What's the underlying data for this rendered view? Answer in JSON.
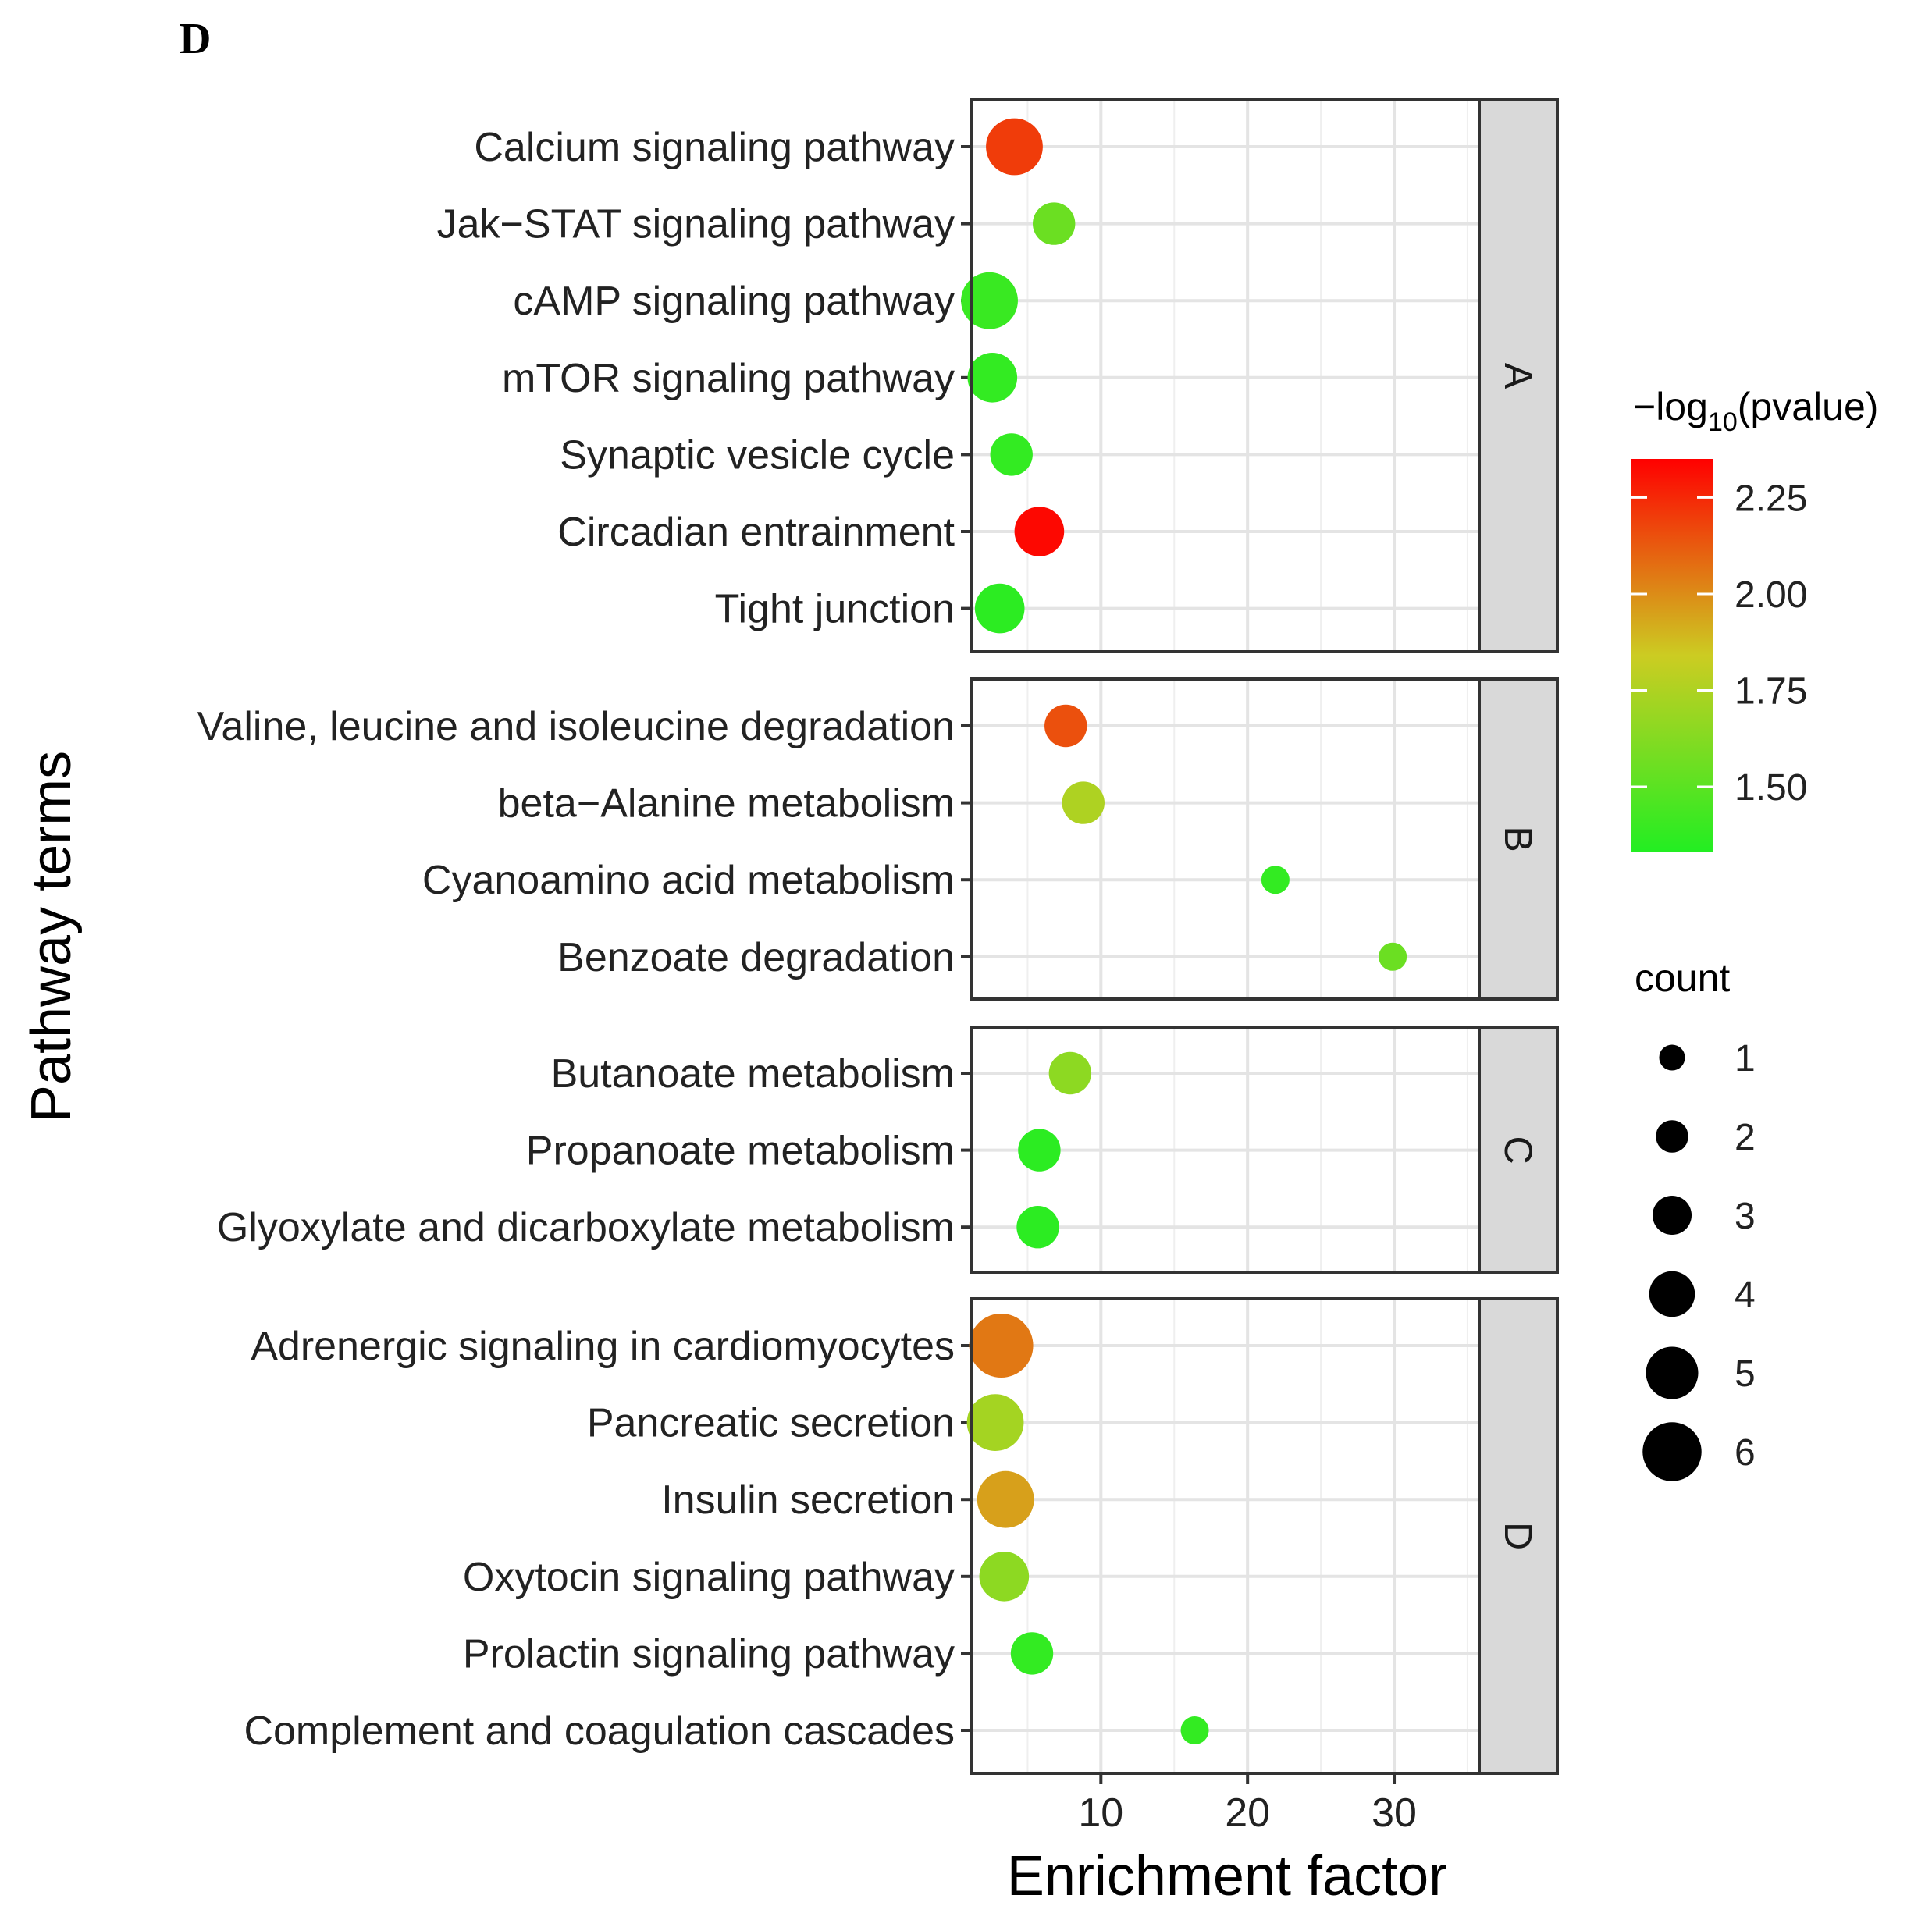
{
  "panel_letter": "D",
  "chart_data": {
    "type": "scatter",
    "title": "",
    "xlabel": "Enrichment factor",
    "ylabel": "Pathway terms",
    "xlim": [
      1.2,
      35.8
    ],
    "x_ticks": [
      10,
      20,
      30
    ],
    "grid": true,
    "facets": [
      {
        "label": "A",
        "points": [
          {
            "term": "Calcium signaling pathway",
            "x": 4.1,
            "count": 5,
            "neglog10p": 2.2
          },
          {
            "term": "Jak−STAT signaling pathway",
            "x": 6.8,
            "count": 3,
            "neglog10p": 1.55
          },
          {
            "term": "cAMP signaling pathway",
            "x": 2.4,
            "count": 5,
            "neglog10p": 1.4
          },
          {
            "term": "mTOR signaling pathway",
            "x": 2.6,
            "count": 4,
            "neglog10p": 1.38
          },
          {
            "term": "Synaptic vesicle cycle",
            "x": 3.9,
            "count": 3,
            "neglog10p": 1.38
          },
          {
            "term": "Circadian entrainment",
            "x": 5.8,
            "count": 4,
            "neglog10p": 2.33
          },
          {
            "term": "Tight junction",
            "x": 3.1,
            "count": 4,
            "neglog10p": 1.36
          }
        ]
      },
      {
        "label": "B",
        "points": [
          {
            "term": "Valine, leucine and isoleucine degradation",
            "x": 7.6,
            "count": 3,
            "neglog10p": 2.15
          },
          {
            "term": "beta−Alanine metabolism",
            "x": 8.8,
            "count": 3,
            "neglog10p": 1.75
          },
          {
            "term": "Cyanoamino acid metabolism",
            "x": 21.9,
            "count": 1,
            "neglog10p": 1.38
          },
          {
            "term": "Benzoate degradation",
            "x": 29.9,
            "count": 1,
            "neglog10p": 1.55
          }
        ]
      },
      {
        "label": "C",
        "points": [
          {
            "term": "Butanoate metabolism",
            "x": 7.9,
            "count": 3,
            "neglog10p": 1.65
          },
          {
            "term": "Propanoate metabolism",
            "x": 5.8,
            "count": 3,
            "neglog10p": 1.36
          },
          {
            "term": "Glyoxylate and dicarboxylate metabolism",
            "x": 5.7,
            "count": 3,
            "neglog10p": 1.36
          }
        ]
      },
      {
        "label": "D",
        "points": [
          {
            "term": "Adrenergic signaling in cardiomyocytes",
            "x": 3.2,
            "count": 6,
            "neglog10p": 2.05
          },
          {
            "term": "Pancreatic secretion",
            "x": 2.8,
            "count": 5,
            "neglog10p": 1.72
          },
          {
            "term": "Insulin secretion",
            "x": 3.5,
            "count": 5,
            "neglog10p": 1.95
          },
          {
            "term": "Oxytocin signaling pathway",
            "x": 3.4,
            "count": 4,
            "neglog10p": 1.65
          },
          {
            "term": "Prolactin signaling pathway",
            "x": 5.3,
            "count": 3,
            "neglog10p": 1.38
          },
          {
            "term": "Complement and coagulation cascades",
            "x": 16.4,
            "count": 1,
            "neglog10p": 1.38
          }
        ]
      }
    ],
    "color_legend": {
      "title_prefix": "−log",
      "title_sub": "10",
      "title_suffix": "(pvalue)",
      "min": 1.33,
      "max": 2.35,
      "ticks": [
        2.25,
        2.0,
        1.75,
        1.5
      ],
      "tick_labels": [
        "2.25",
        "2.00",
        "1.75",
        "1.50"
      ],
      "low_color": "#22ee22",
      "mid_color": "#cccc22",
      "high_color": "#ff0000"
    },
    "size_legend": {
      "title": "count",
      "values": [
        1,
        2,
        3,
        4,
        5,
        6
      ],
      "labels": [
        "1",
        "2",
        "3",
        "4",
        "5",
        "6"
      ]
    }
  }
}
